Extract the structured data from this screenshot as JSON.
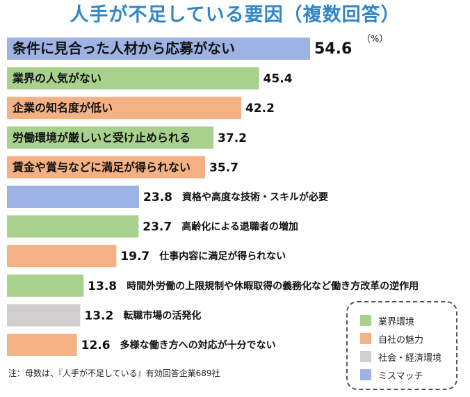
{
  "chart_data": {
    "type": "bar",
    "orientation": "horizontal",
    "title": "人手が不足している要因（複数回答）",
    "unit": "（%）",
    "xlim": [
      0,
      60
    ],
    "grid": false,
    "legend_position": "bottom-right",
    "categories": [
      "条件に見合った人材から応募がない",
      "業界の人気がない",
      "企業の知名度が低い",
      "労働環境が厳しいと受け止められる",
      "賃金や賞与などに満足が得られない",
      "資格や高度な技術・スキルが必要",
      "高齢化による退職者の増加",
      "仕事内容に満足が得られない",
      "時間外労働の上限規制や休暇取得の義務化など働き方改革の逆作用",
      "転職市場の活発化",
      "多様な働き方への対応が十分でない"
    ],
    "values": [
      54.6,
      45.4,
      42.2,
      37.2,
      35.7,
      23.8,
      23.7,
      19.7,
      13.8,
      13.2,
      12.6
    ],
    "value_labels": [
      "54.6",
      "45.4",
      "42.2",
      "37.2",
      "35.7",
      "23.8",
      "23.7",
      "19.7",
      "13.8",
      "13.2",
      "12.6"
    ],
    "groups": [
      "mismatch",
      "industry",
      "company",
      "industry",
      "company",
      "mismatch",
      "industry",
      "company",
      "industry",
      "society",
      "company"
    ],
    "legend": [
      {
        "key": "industry",
        "label": "業界環境",
        "color": "#a8d18d"
      },
      {
        "key": "company",
        "label": "自社の魅力",
        "color": "#f4b183"
      },
      {
        "key": "society",
        "label": "社会・経済環境",
        "color": "#d0cece"
      },
      {
        "key": "mismatch",
        "label": "ミスマッチ",
        "color": "#9db3e3"
      }
    ]
  },
  "note": "注：母数は、『人手が不足している』有効回答企業689社"
}
